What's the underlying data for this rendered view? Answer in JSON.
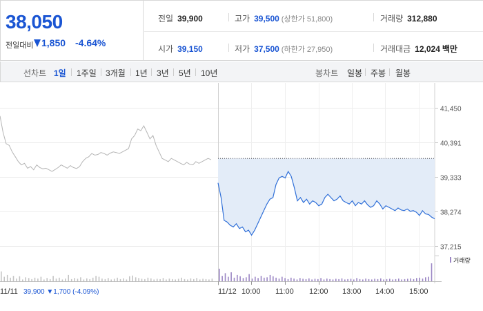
{
  "quote": {
    "price": "38,050",
    "change_label": "전일대비",
    "change_amount": "1,850",
    "change_percent": "-4.64%",
    "change_direction": "down",
    "stats": {
      "prev_close": {
        "label": "전일",
        "value": "39,900"
      },
      "high": {
        "label": "고가",
        "value": "39,500",
        "sub": "(상한가 51,800)"
      },
      "volume": {
        "label": "거래량",
        "value": "312,880"
      },
      "open": {
        "label": "시가",
        "value": "39,150"
      },
      "low": {
        "label": "저가",
        "value": "37,500",
        "sub": "(하한가 27,950)"
      },
      "trade_value": {
        "label": "거래대금",
        "value": "12,024",
        "unit": "백만"
      }
    }
  },
  "tabs": {
    "line_label": "선차트",
    "line_items": [
      "1일",
      "1주일",
      "3개월",
      "1년",
      "3년",
      "5년",
      "10년"
    ],
    "line_active": "1일",
    "candle_label": "봉차트",
    "candle_items": [
      "일봉",
      "주봉",
      "월봉"
    ]
  },
  "chart": {
    "prev_day_info": {
      "date": "11/11",
      "close": "39,900",
      "change": "▼1,700",
      "percent": "(-4.09%)"
    },
    "volume_legend": "거래량"
  },
  "colors": {
    "accent": "#1a55d3",
    "today_line": "#2f6fd8",
    "today_fill": "#e3ecf8",
    "prev_line": "#b5b5b5",
    "volume_today": "#9b86c4",
    "volume_prev": "#c4c4c4"
  },
  "chart_data": {
    "type": "line",
    "ylim": [
      37215,
      41450
    ],
    "y_ticks": [
      "41,450",
      "40,391",
      "39,333",
      "38,274",
      "37,215"
    ],
    "y_tick_values": [
      41450,
      40391,
      39333,
      38274,
      37215
    ],
    "x_ticks": [
      "11/11",
      "11/12",
      "10:00",
      "11:00",
      "12:00",
      "13:00",
      "14:00",
      "15:00"
    ],
    "reference_price": 39900,
    "series": [
      {
        "role": "previous_day",
        "values": [
          41200,
          40700,
          40350,
          40300,
          40100,
          39950,
          39800,
          39700,
          39750,
          39600,
          39650,
          39550,
          39700,
          39620,
          39580,
          39600,
          39550,
          39500,
          39560,
          39620,
          39700,
          39650,
          39600,
          39680,
          39620,
          39590,
          39650,
          39800,
          39900,
          39950,
          40050,
          40000,
          40020,
          40080,
          40050,
          40000,
          40060,
          40100,
          40080,
          40050,
          40100,
          40150,
          40200,
          40500,
          40600,
          40800,
          40750,
          40900,
          40700,
          40500,
          40600,
          40300,
          40100,
          39900,
          39850,
          39800,
          39900,
          39850,
          39800,
          39750,
          39700,
          39780,
          39720,
          39700,
          39800,
          39750,
          39800,
          39850,
          39900,
          39860
        ]
      },
      {
        "role": "today",
        "values": [
          39150,
          38700,
          38000,
          37950,
          37850,
          37800,
          37900,
          37750,
          37800,
          37650,
          37700,
          37550,
          37700,
          37900,
          38100,
          38300,
          38500,
          38650,
          38700,
          39100,
          39300,
          39350,
          39300,
          39500,
          39350,
          39000,
          38600,
          38700,
          38550,
          38650,
          38500,
          38600,
          38550,
          38450,
          38500,
          38700,
          38800,
          38700,
          38600,
          38650,
          38750,
          38600,
          38550,
          38500,
          38600,
          38450,
          38550,
          38500,
          38600,
          38480,
          38400,
          38450,
          38600,
          38500,
          38350,
          38450,
          38400,
          38350,
          38300,
          38380,
          38320,
          38300,
          38350,
          38280,
          38300,
          38250,
          38150,
          38300,
          38200,
          38180,
          38100,
          38050
        ]
      }
    ],
    "volume": {
      "previous_day": [
        0.55,
        0.25,
        0.35,
        0.2,
        0.3,
        0.15,
        0.28,
        0.1,
        0.22,
        0.18,
        0.12,
        0.2,
        0.15,
        0.25,
        0.1,
        0.18,
        0.12,
        0.3,
        0.15,
        0.2,
        0.1,
        0.15,
        0.35,
        0.12,
        0.18,
        0.14,
        0.22,
        0.1,
        0.16,
        0.12,
        0.2,
        0.3,
        0.25,
        0.15,
        0.12,
        0.18,
        0.1,
        0.14,
        0.2,
        0.12,
        0.16,
        0.1,
        0.28,
        0.32,
        0.22,
        0.18,
        0.14,
        0.12,
        0.2,
        0.16,
        0.1,
        0.14,
        0.12,
        0.18,
        0.1,
        0.15,
        0.12,
        0.1,
        0.14,
        0.2,
        0.12,
        0.1,
        0.16,
        0.12,
        0.18,
        0.1,
        0.14,
        0.12,
        0.1,
        0.15
      ],
      "today": [
        0.7,
        0.3,
        0.45,
        0.25,
        0.5,
        0.2,
        0.35,
        0.28,
        0.18,
        0.22,
        0.4,
        0.15,
        0.25,
        0.18,
        0.3,
        0.2,
        0.22,
        0.35,
        0.28,
        0.2,
        0.15,
        0.25,
        0.18,
        0.12,
        0.2,
        0.15,
        0.1,
        0.18,
        0.14,
        0.12,
        0.16,
        0.1,
        0.14,
        0.12,
        0.18,
        0.1,
        0.15,
        0.12,
        0.1,
        0.14,
        0.12,
        0.16,
        0.1,
        0.12,
        0.14,
        0.1,
        0.18,
        0.12,
        0.1,
        0.15,
        0.12,
        0.1,
        0.14,
        0.12,
        0.16,
        0.1,
        0.12,
        0.14,
        0.1,
        0.12,
        0.15,
        0.1,
        0.12,
        0.14,
        0.16,
        0.12,
        0.18,
        0.2,
        0.15,
        0.22,
        0.25,
        1.0
      ]
    }
  }
}
